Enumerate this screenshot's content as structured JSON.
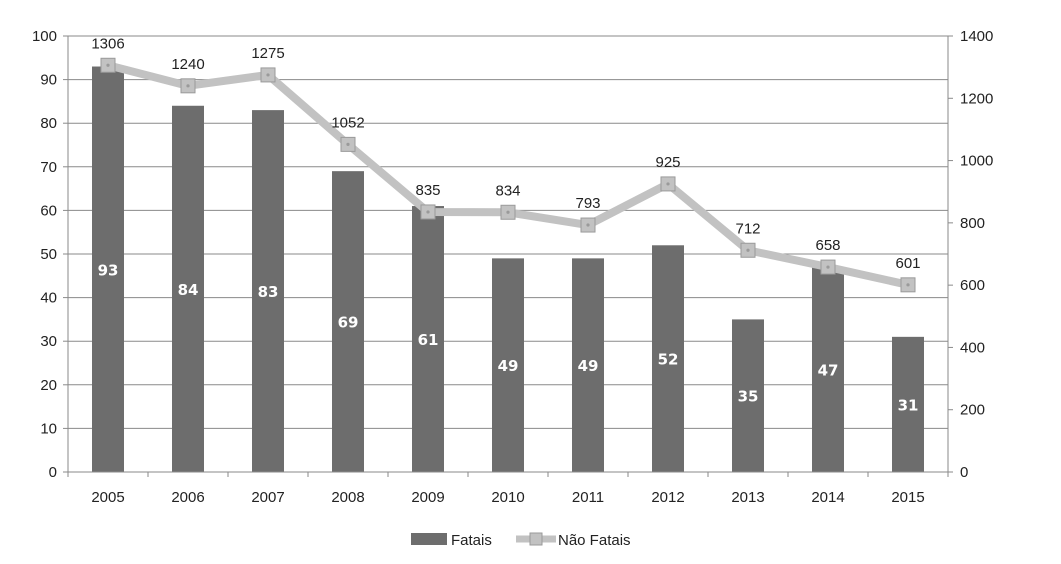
{
  "chart_data": {
    "type": "bar",
    "categories": [
      "2005",
      "2006",
      "2007",
      "2008",
      "2009",
      "2010",
      "2011",
      "2012",
      "2013",
      "2014",
      "2015"
    ],
    "series": [
      {
        "name": "Fatais",
        "type": "bar",
        "axis": "left",
        "values": [
          93,
          84,
          83,
          69,
          61,
          49,
          49,
          52,
          35,
          47,
          31
        ],
        "color": "#6d6d6d",
        "label_color": "#ffffff"
      },
      {
        "name": "Não Fatais",
        "type": "line",
        "axis": "right",
        "values": [
          1306,
          1240,
          1275,
          1052,
          835,
          834,
          793,
          925,
          712,
          658,
          601
        ],
        "color": "#c2c2c2",
        "marker": "square"
      }
    ],
    "y_left": {
      "range": [
        0,
        100
      ],
      "ticks": [
        "0",
        "10",
        "20",
        "30",
        "40",
        "50",
        "60",
        "70",
        "80",
        "90",
        "100"
      ]
    },
    "y_right": {
      "range": [
        0,
        1400
      ],
      "ticks": [
        "0",
        "200",
        "400",
        "600",
        "800",
        "1000",
        "1200",
        "1400"
      ]
    },
    "grid": true,
    "legend": {
      "position": "bottom"
    },
    "title": "",
    "xlabel": "",
    "ylabel": ""
  }
}
